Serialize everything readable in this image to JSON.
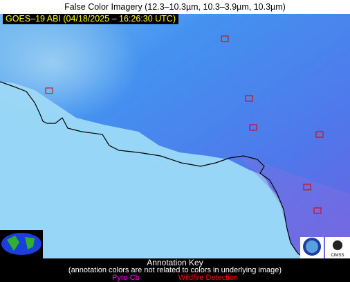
{
  "header": {
    "title": "False Color Imagery (12.3–10.3µm, 10.3–3.9µm, 10.3µm)"
  },
  "image": {
    "label": "GOES–19 ABI (04/18/2025 – 16:26:30 UTC)"
  },
  "logos": {
    "cimss": "CIMSS"
  },
  "annotation_key": {
    "title": "Annotation Key",
    "note": "(annotation colors are not related to colors in underlying image)",
    "items": [
      {
        "label": "Pyro Cb",
        "color": "#ff00ff"
      },
      {
        "label": "Wildfire Detection",
        "color": "#ff0000"
      }
    ]
  }
}
